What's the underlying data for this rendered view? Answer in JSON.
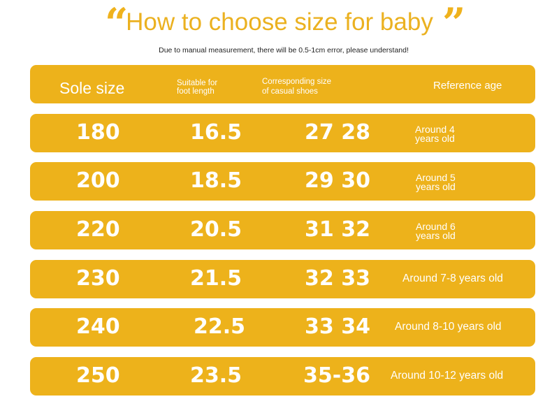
{
  "title": "How to choose size for baby",
  "quote_open": "“",
  "quote_close": "”",
  "note": "Due to manual measurement, there will be 0.5-1cm error, please understand!",
  "colors": {
    "bar": "#edb21b",
    "title": "#ebb120",
    "bar_text": "#ffffff"
  },
  "header": {
    "sole": "Sole size",
    "foot_line1": "Suitable for",
    "foot_line2": "foot length",
    "shoe_line1": "Corresponding size",
    "shoe_line2": "of casual shoes",
    "age": "Reference age"
  },
  "rows": [
    {
      "sole": "180",
      "foot": "16.5",
      "shoe": "27 28",
      "age_line1": "Around 4",
      "age_line2": "years old"
    },
    {
      "sole": "200",
      "foot": "18.5",
      "shoe": "29 30",
      "age_line1": "Around 5",
      "age_line2": "years old"
    },
    {
      "sole": "220",
      "foot": "20.5",
      "shoe": "31 32",
      "age_line1": "Around 6",
      "age_line2": "years old"
    },
    {
      "sole": "230",
      "foot": "21.5",
      "shoe": "32 33",
      "age": "Around 7-8 years old"
    },
    {
      "sole": "240",
      "foot": "22.5",
      "shoe": "33 34",
      "age": "Around 8-10 years old"
    },
    {
      "sole": "250",
      "foot": "23.5",
      "shoe": "35-36",
      "age": "Around 10-12 years old"
    }
  ]
}
